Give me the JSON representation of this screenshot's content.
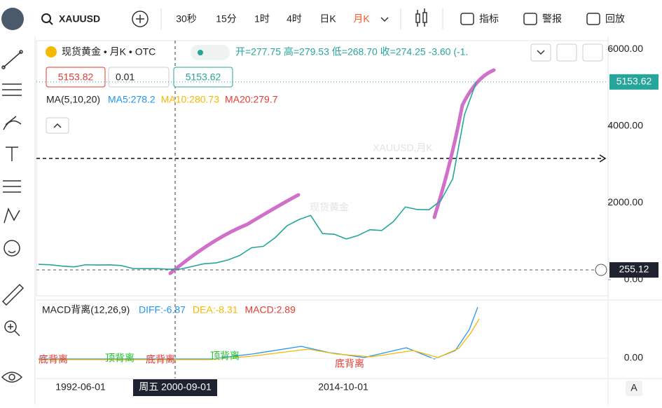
{
  "toolbar": {
    "symbol": "XAUUSD",
    "intervals": [
      "30秒",
      "15分",
      "1时",
      "4时",
      "日K",
      "月K"
    ],
    "active_interval": 5,
    "tools": [
      "指标",
      "警报",
      "回放"
    ]
  },
  "legend": {
    "name": "现货黄金 • 月K • OTC",
    "ohlc": "开=277.75 高=279.53 低=268.70 收=274.25 -3.60 (-1.",
    "bid": "5153.82",
    "spread": "0.01",
    "ask": "5153.62",
    "ma_title": "MA(5,10,20)",
    "ma": [
      {
        "label": "MA5:278.2",
        "color": "#2196f3"
      },
      {
        "label": "MA10:280.73",
        "color": "#f5b800"
      },
      {
        "label": "MA20:279.7",
        "color": "#e53935"
      }
    ]
  },
  "watermark": [
    "XAUUSD,月K",
    "现货黄金"
  ],
  "price_axis": {
    "ticks": [
      {
        "value": 6000,
        "label": "6000.00"
      },
      {
        "value": 4000,
        "label": "4000.00"
      },
      {
        "value": 2000,
        "label": "2000.00"
      },
      {
        "value": 0,
        "label": "0.00"
      }
    ],
    "last_price": {
      "value": 5153.62,
      "label": "5153.62"
    },
    "crosshair": {
      "value": 255.12,
      "label": "255.12"
    }
  },
  "price_line": {
    "color": "#26a69a",
    "values": [
      400,
      390,
      355,
      335,
      390,
      383,
      387,
      369,
      290,
      288,
      290,
      272,
      277,
      347,
      416,
      438,
      513,
      632,
      834,
      870,
      1096,
      1405,
      1566,
      1675,
      1202,
      1184,
      1061,
      1152,
      1303,
      1282,
      1517,
      1895,
      1829,
      1824,
      2063,
      2625,
      4300,
      5153.62
    ]
  },
  "macd": {
    "title": "MACD背离(12,26,9)",
    "items": [
      {
        "label": "DIFF:-6.87",
        "color": "#2196f3"
      },
      {
        "label": "DEA:-8.31",
        "color": "#f5b800"
      },
      {
        "label": "MACD:2.89",
        "color": "#e53935"
      }
    ],
    "zero": {
      "value": 0,
      "label": "0.00"
    },
    "markers": [
      {
        "label": "底背离",
        "color": "#e53935"
      },
      {
        "label": "顶背离",
        "color": "#22c02e"
      },
      {
        "label": "底背离",
        "color": "#e53935"
      },
      {
        "label": "顶背离",
        "color": "#22c02e"
      },
      {
        "label": "底背离",
        "color": "#e53935"
      }
    ]
  },
  "time_axis": {
    "labels": [
      "1992-06-01",
      "2014-10-01"
    ],
    "crosshair": "周五 2000-09-01",
    "mode": "A"
  }
}
